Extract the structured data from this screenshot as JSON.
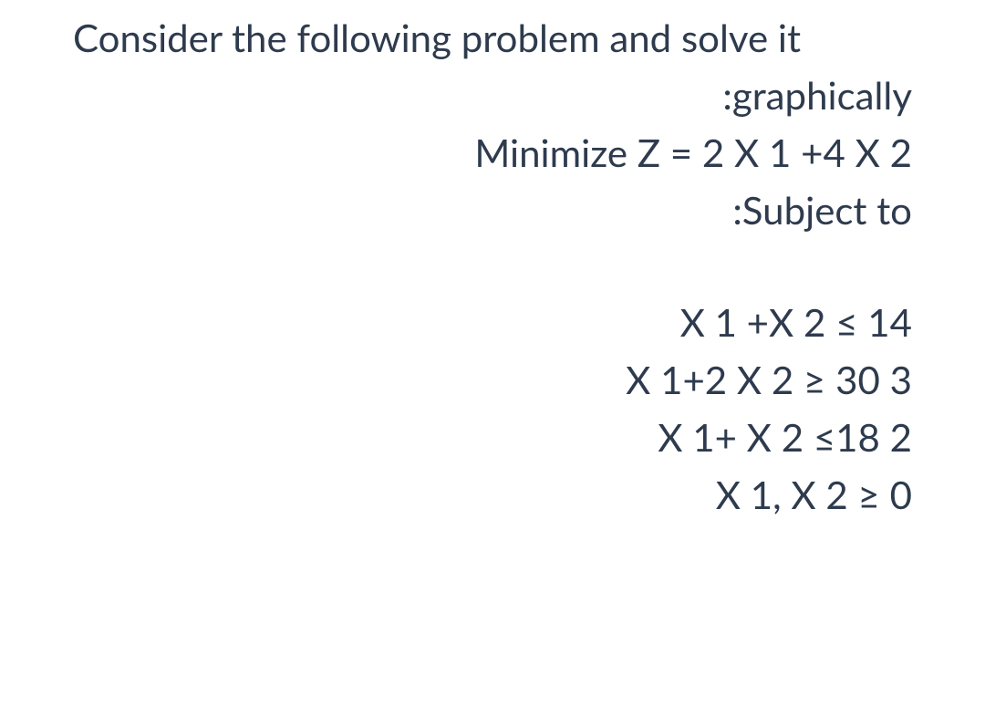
{
  "problem": {
    "intro_line1": "Consider the following problem and solve it",
    "intro_line2": ":graphically",
    "objective": "Minimize Z = 2 X 1 +4 X 2",
    "subject_to": ":Subject to",
    "constraints": {
      "c1": "X 1 +X 2 ≤ 14",
      "c2": "X 1+2 X 2 ≥ 30 3",
      "c3": "X 1+ X 2 ≤18 2",
      "c4": "X 1, X 2 ≥ 0"
    }
  },
  "styling": {
    "background_color": "#ffffff",
    "text_color": "#2e3b4e",
    "font_size_pt": 32,
    "font_weight": 400,
    "text_align": "right",
    "line_height": 1.5
  }
}
